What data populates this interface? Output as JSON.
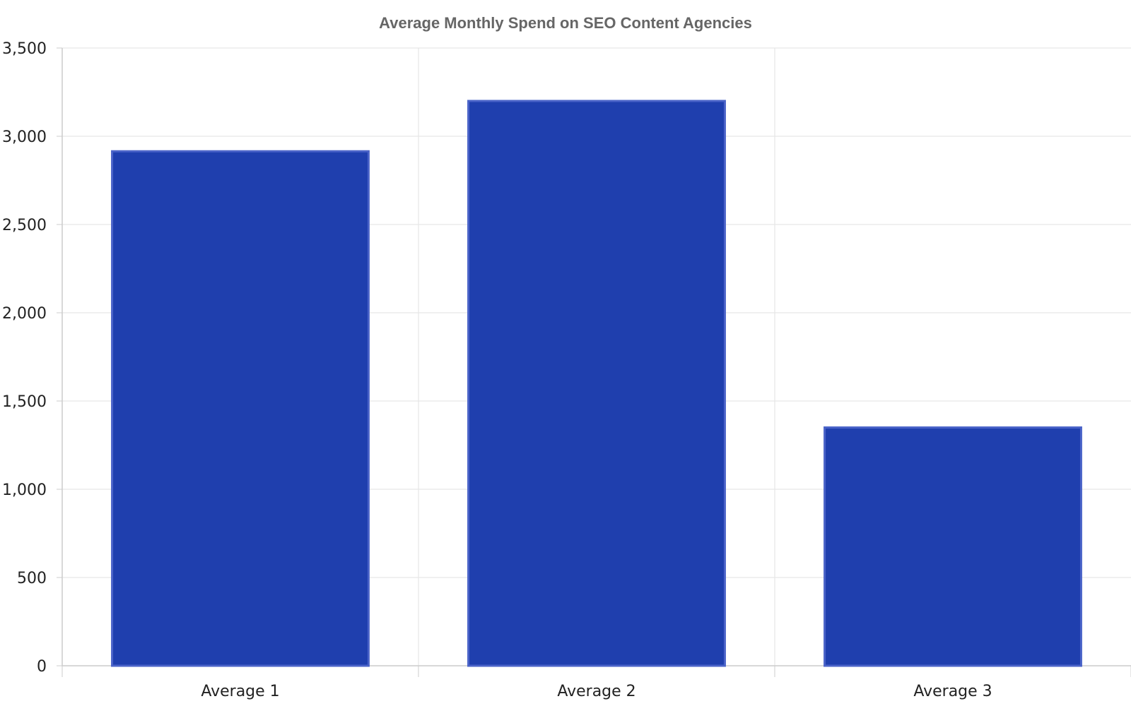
{
  "chart_data": {
    "type": "bar",
    "title": "Average Monthly Spend on SEO Content Agencies",
    "categories": [
      "Average 1",
      "Average 2",
      "Average 3"
    ],
    "values": [
      2915,
      3200,
      1350
    ],
    "ylim": [
      0,
      3500
    ],
    "yticks": [
      0,
      500,
      1000,
      1500,
      2000,
      2500,
      3000,
      3500
    ],
    "ytick_labels": [
      "0",
      "500",
      "1,000",
      "1,500",
      "2,000",
      "2,500",
      "3,000",
      "3,500"
    ],
    "xlabel": "",
    "ylabel": "",
    "grid": true,
    "bar_color": "#1f3fae",
    "bar_edge_color": "#4a63c8"
  }
}
